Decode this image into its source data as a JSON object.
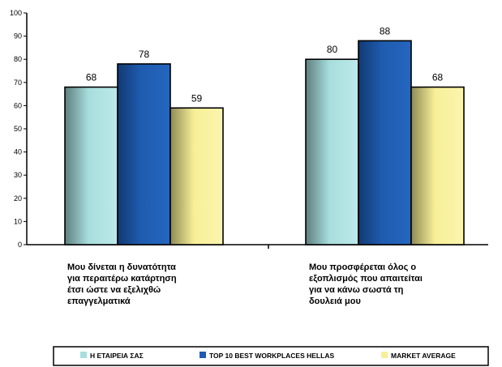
{
  "chart_data": {
    "type": "bar",
    "categories": [
      [
        "Μου δίνεται η δυνατότητα",
        "για περαιτέρω κατάρτηση",
        "έτσι ώστε να εξελιχθώ",
        "επαγγελματικά"
      ],
      [
        "Μου προσφέρεται όλος ο",
        "εξοπλισμός που απαιτείται",
        "για να κάνω σωστά τη",
        "δουλειά μου"
      ]
    ],
    "series": [
      {
        "name": "Η ΕΤΑΙΡΕΙΑ ΣΑΣ",
        "values": [
          68,
          80
        ],
        "color": "#a8dede"
      },
      {
        "name": "TOP 10 BEST WORKPLACES HELLAS",
        "values": [
          78,
          88
        ],
        "color": "#1f5cb0"
      },
      {
        "name": "MARKET AVERAGE",
        "values": [
          59,
          68
        ],
        "color": "#f7ef98"
      }
    ],
    "data_labels": [
      [
        "68",
        "80"
      ],
      [
        "78",
        "88"
      ],
      [
        "59",
        "68"
      ]
    ],
    "y_ticks": [
      "0",
      "10",
      "20",
      "30",
      "40",
      "50",
      "60",
      "70",
      "80",
      "90",
      "100"
    ],
    "ylim": [
      0,
      100
    ],
    "grid": false,
    "legend_position": "bottom"
  }
}
